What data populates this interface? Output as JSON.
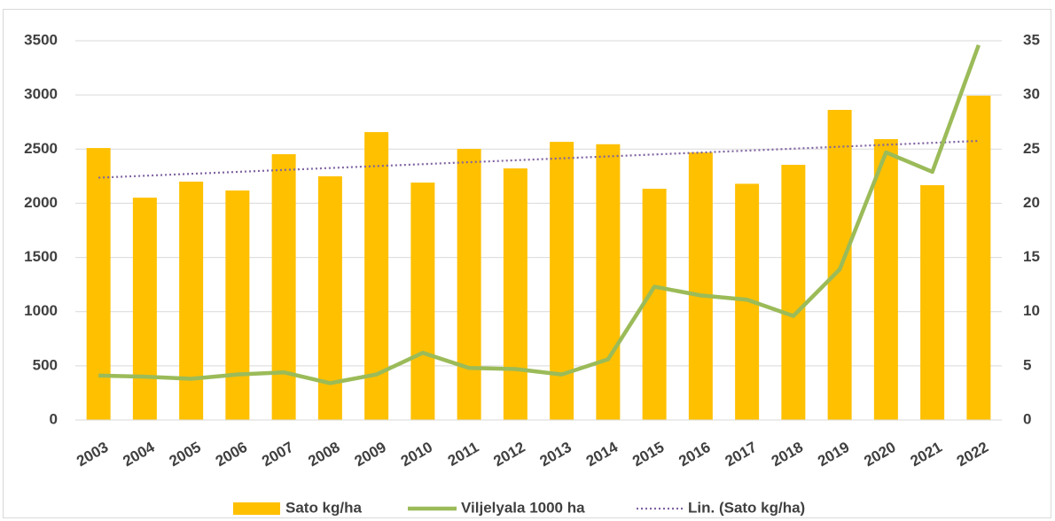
{
  "chart_data": {
    "type": "bar",
    "categories": [
      "2003",
      "2004",
      "2005",
      "2006",
      "2007",
      "2008",
      "2009",
      "2010",
      "2011",
      "2012",
      "2013",
      "2014",
      "2015",
      "2016",
      "2017",
      "2018",
      "2019",
      "2020",
      "2021",
      "2022"
    ],
    "series": [
      {
        "name": "Sato kg/ha",
        "type": "bar",
        "color": "#ffc000",
        "values": [
          2510,
          2052,
          2200,
          2118,
          2453,
          2249,
          2657,
          2191,
          2502,
          2322,
          2567,
          2545,
          2134,
          2469,
          2180,
          2355,
          2862,
          2592,
          2167,
          2993
        ]
      },
      {
        "name": "Viljelyala 1000 ha",
        "type": "line",
        "axis": "y2",
        "color": "#9bbb59",
        "values": [
          4.1,
          4.0,
          3.8,
          4.2,
          4.4,
          3.4,
          4.2,
          6.2,
          4.8,
          4.7,
          4.2,
          5.6,
          12.3,
          11.5,
          11.1,
          9.6,
          13.9,
          24.7,
          22.9,
          34.6
        ]
      }
    ],
    "trendline": {
      "name": "Lin. (Sato kg/ha)",
      "color": "#8064a2",
      "style": "dotted"
    },
    "ylim": [
      0,
      3500
    ],
    "yticks": [
      0,
      500,
      1000,
      1500,
      2000,
      2500,
      3000,
      3500
    ],
    "y2lim": [
      0,
      35
    ],
    "y2ticks": [
      0,
      5,
      10,
      15,
      20,
      25,
      30,
      35
    ],
    "grid": true,
    "legend": "bottom"
  }
}
